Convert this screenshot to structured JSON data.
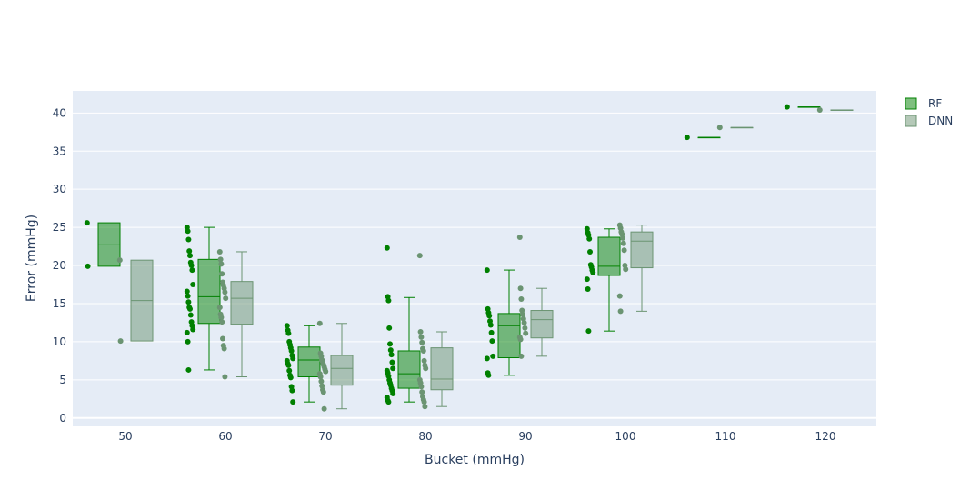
{
  "chart_data": {
    "type": "box",
    "xlabel": "Bucket (mmHg)",
    "ylabel": "Error (mmHg)",
    "categories": [
      "50",
      "60",
      "70",
      "80",
      "90",
      "100",
      "110",
      "120"
    ],
    "ylim": [
      -1.1,
      42.9
    ],
    "yticks": [
      0,
      5,
      10,
      15,
      20,
      25,
      30,
      35,
      40
    ],
    "grid": true,
    "legend_position": "top-right",
    "series": [
      {
        "name": "RF",
        "color": "#008000",
        "boxes": [
          {
            "category": "50",
            "min": 19.9,
            "q1": 19.9,
            "median": 22.7,
            "q3": 25.6,
            "max": 25.6,
            "points": [
              25.6,
              19.9
            ]
          },
          {
            "category": "60",
            "min": 6.3,
            "q1": 12.4,
            "median": 15.9,
            "q3": 20.8,
            "max": 25.0,
            "points": [
              25.0,
              24.5,
              23.4,
              21.9,
              21.3,
              20.4,
              20.0,
              19.4,
              17.5,
              16.6,
              16.0,
              15.2,
              14.5,
              14.3,
              13.5,
              12.6,
              12.1,
              11.6,
              11.2,
              10.0,
              6.3
            ]
          },
          {
            "category": "70",
            "min": 2.1,
            "q1": 5.4,
            "median": 7.6,
            "q3": 9.3,
            "max": 12.1,
            "points": [
              12.1,
              11.5,
              11.1,
              10.0,
              9.6,
              9.2,
              8.8,
              8.2,
              7.8,
              7.5,
              7.1,
              6.9,
              6.2,
              5.6,
              5.3,
              4.1,
              3.6,
              2.1
            ]
          },
          {
            "category": "80",
            "min": 2.1,
            "q1": 3.9,
            "median": 5.8,
            "q3": 8.8,
            "max": 15.8,
            "points": [
              22.3,
              15.9,
              15.4,
              11.8,
              9.7,
              8.9,
              8.3,
              7.3,
              6.5,
              6.2,
              5.9,
              5.5,
              5.0,
              4.6,
              4.3,
              3.9,
              3.6,
              3.2,
              2.7,
              2.3,
              2.1
            ]
          },
          {
            "category": "90",
            "min": 5.6,
            "q1": 7.9,
            "median": 12.1,
            "q3": 13.7,
            "max": 19.4,
            "points": [
              19.4,
              14.3,
              13.8,
              13.4,
              12.7,
              12.2,
              11.2,
              10.1,
              8.1,
              7.8,
              5.9,
              5.6
            ]
          },
          {
            "category": "100",
            "min": 11.4,
            "q1": 18.7,
            "median": 19.9,
            "q3": 23.7,
            "max": 24.8,
            "points": [
              24.8,
              24.3,
              24.0,
              23.5,
              21.8,
              20.1,
              19.8,
              19.4,
              19.1,
              18.2,
              16.9,
              11.4
            ]
          },
          {
            "category": "110",
            "min": 36.8,
            "q1": 36.8,
            "median": 36.8,
            "q3": 36.8,
            "max": 36.8,
            "points": [
              36.8
            ]
          },
          {
            "category": "120",
            "min": 40.8,
            "q1": 40.8,
            "median": 40.8,
            "q3": 40.8,
            "max": 40.8,
            "points": [
              40.8
            ]
          }
        ]
      },
      {
        "name": "DNN",
        "color": "#6b9472",
        "boxes": [
          {
            "category": "50",
            "min": 10.1,
            "q1": 10.1,
            "median": 15.4,
            "q3": 20.7,
            "max": 20.7,
            "points": [
              20.7,
              10.1
            ]
          },
          {
            "category": "60",
            "min": 5.4,
            "q1": 12.3,
            "median": 15.7,
            "q3": 17.9,
            "max": 21.8,
            "points": [
              21.8,
              20.8,
              20.2,
              18.9,
              17.8,
              17.4,
              17.0,
              16.5,
              15.7,
              14.5,
              13.6,
              13.2,
              12.6,
              10.4,
              9.5,
              9.1,
              5.4
            ]
          },
          {
            "category": "70",
            "min": 1.2,
            "q1": 4.3,
            "median": 6.5,
            "q3": 8.2,
            "max": 12.4,
            "points": [
              12.4,
              8.5,
              8.1,
              7.6,
              7.3,
              7.0,
              6.7,
              6.4,
              6.1,
              5.8,
              5.4,
              4.8,
              4.2,
              3.7,
              3.4,
              1.2
            ]
          },
          {
            "category": "80",
            "min": 1.5,
            "q1": 3.7,
            "median": 5.1,
            "q3": 9.2,
            "max": 11.3,
            "points": [
              21.3,
              11.3,
              10.6,
              9.9,
              9.1,
              8.8,
              7.5,
              6.9,
              6.5,
              5.0,
              4.6,
              4.1,
              3.4,
              2.8,
              2.4,
              2.1,
              1.5
            ]
          },
          {
            "category": "90",
            "min": 8.1,
            "q1": 10.5,
            "median": 12.9,
            "q3": 14.1,
            "max": 17.0,
            "points": [
              23.7,
              17.0,
              15.6,
              14.1,
              13.6,
              13.0,
              12.5,
              11.8,
              11.1,
              10.6,
              10.3,
              8.1
            ]
          },
          {
            "category": "100",
            "min": 14.0,
            "q1": 19.7,
            "median": 23.2,
            "q3": 24.4,
            "max": 25.3,
            "points": [
              25.3,
              24.9,
              24.4,
              24.1,
              23.6,
              22.9,
              22.0,
              20.0,
              19.5,
              16.0,
              14.0
            ]
          },
          {
            "category": "110",
            "min": 38.1,
            "q1": 38.1,
            "median": 38.1,
            "q3": 38.1,
            "max": 38.1,
            "points": [
              38.1
            ]
          },
          {
            "category": "120",
            "min": 40.4,
            "q1": 40.4,
            "median": 40.4,
            "q3": 40.4,
            "max": 40.4,
            "points": [
              40.4
            ]
          }
        ]
      }
    ]
  }
}
